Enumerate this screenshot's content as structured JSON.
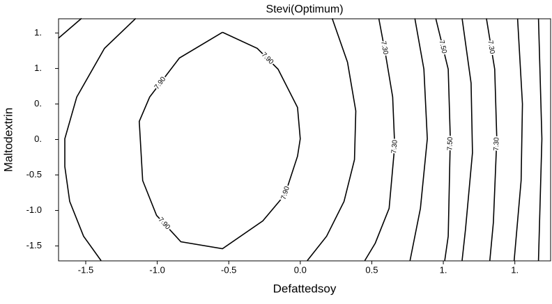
{
  "chart_data": {
    "type": "contour",
    "title": "Stevi(Optimum)",
    "x_label": "Defattedsoy",
    "y_label": "Maltodextrin",
    "xlim": [
      -1.69,
      1.75
    ],
    "ylim": [
      -1.71,
      1.7
    ],
    "xticks": [
      -1.5,
      {
        "value": -1,
        "label": "-1.0"
      },
      -0.5,
      {
        "value": 0,
        "label": "0.0"
      },
      0.5,
      {
        "value": 1,
        "label": "1."
      },
      {
        "value": 1.5,
        "label": "1."
      }
    ],
    "yticks": [
      -1.5,
      {
        "value": -1,
        "label": "-1.0"
      },
      -0.5,
      {
        "value": 0,
        "label": "0."
      },
      {
        "value": 0.5,
        "label": "0."
      },
      {
        "value": 1,
        "label": "1."
      },
      {
        "value": 1.5,
        "label": "1."
      }
    ],
    "color": "#000000",
    "contours": [
      {
        "x": [
          -1.689,
          -1.529
        ],
        "y": [
          1.43,
          1.706
        ]
      },
      {
        "x": [
          -1.15,
          -1.369,
          -1.563,
          -1.646,
          -1.646,
          -1.612,
          -1.515,
          -1.393
        ],
        "y": [
          1.706,
          1.284,
          0.598,
          0.01,
          -0.382,
          -0.873,
          -1.363,
          -1.706
        ]
      },
      {
        "label": "7.90",
        "closed": true,
        "x": [
          -0.544,
          -0.301,
          -0.155,
          -0.019,
          0,
          -0.019,
          -0.107,
          -0.262,
          -0.544,
          -0.835,
          -1.005,
          -1.102,
          -1.126,
          -1.053,
          -0.845
        ],
        "y": [
          1.51,
          1.284,
          0.99,
          0.451,
          0.01,
          -0.235,
          -0.775,
          -1.147,
          -1.539,
          -1.441,
          -1.069,
          -0.578,
          0.255,
          0.598,
          1.147
        ]
      },
      {
        "x": [
          0.223,
          0.33,
          0.388,
          0.379,
          0.306,
          0.184,
          0.049
        ],
        "y": [
          1.706,
          1.088,
          0.402,
          -0.284,
          -0.873,
          -1.363,
          -1.706
        ]
      },
      {
        "label": "7.30",
        "x": [
          0.549,
          0.597,
          0.646,
          0.66,
          0.621,
          0.524,
          0.451
        ],
        "y": [
          1.706,
          1.186,
          0.598,
          -0.088,
          -0.971,
          -1.461,
          -1.706
        ]
      },
      {
        "x": [
          0.801,
          0.864,
          0.888,
          0.84,
          0.767
        ],
        "y": [
          1.706,
          0.99,
          0.01,
          -0.971,
          -1.706
        ]
      },
      {
        "label": "7.50",
        "x": [
          0.947,
          1.034,
          1.049,
          1.034,
          1.01
        ],
        "y": [
          1.706,
          0.99,
          0.01,
          -1.363,
          -1.706
        ]
      },
      {
        "x": [
          1.131,
          1.194,
          1.204,
          1.155,
          1.131
        ],
        "y": [
          1.706,
          0.794,
          -0.186,
          -1.265,
          -1.706
        ]
      },
      {
        "label": "7.30",
        "x": [
          1.301,
          1.359,
          1.374,
          1.35,
          1.325
        ],
        "y": [
          1.706,
          0.99,
          0.01,
          -1.167,
          -1.706
        ]
      },
      {
        "x": [
          1.519,
          1.553,
          1.544,
          1.495
        ],
        "y": [
          1.706,
          0.5,
          -0.578,
          -1.706
        ]
      },
      {
        "x": [
          1.665,
          1.689,
          1.665
        ],
        "y": [
          1.706,
          0.01,
          -1.706
        ]
      }
    ]
  }
}
